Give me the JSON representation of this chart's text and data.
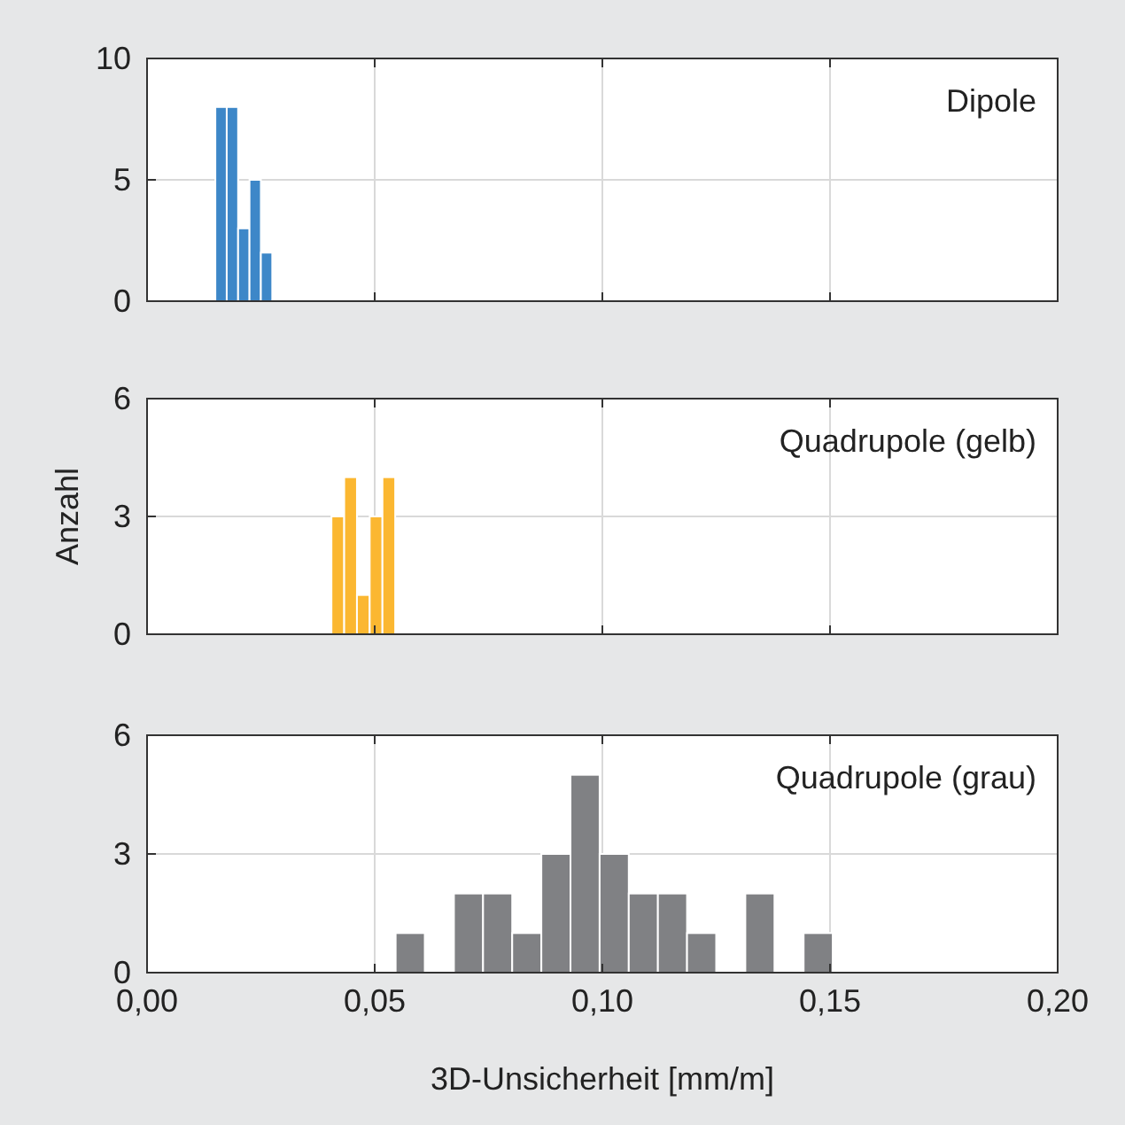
{
  "chart_data": [
    {
      "type": "histogram",
      "title": "Dipole",
      "bins": [
        0.015,
        0.0175,
        0.02,
        0.0225,
        0.025,
        0.0275
      ],
      "values": [
        8,
        8,
        3,
        5,
        2
      ],
      "color": "#3d87c8",
      "xlim": [
        0,
        0.2
      ],
      "xticks": [
        {
          "value": 0,
          "label": null
        },
        {
          "value": 0.05,
          "label": null
        },
        {
          "value": 0.1,
          "label": null
        },
        {
          "value": 0.15,
          "label": null
        },
        {
          "value": 0.2,
          "label": null
        }
      ],
      "ylim": [
        0,
        10
      ],
      "yticks": [
        0,
        5,
        10
      ],
      "grid": true,
      "tick_labels": "y"
    },
    {
      "type": "histogram",
      "title": "Quadrupole (gelb)",
      "ylabel": "Anzahl",
      "bins": [
        0.0405,
        0.0433,
        0.0461,
        0.0489,
        0.0517,
        0.0545
      ],
      "values": [
        3,
        4,
        1,
        3,
        4
      ],
      "color": "#fbb731",
      "xlim": [
        0,
        0.2
      ],
      "xticks": [
        {
          "value": 0,
          "label": null
        },
        {
          "value": 0.05,
          "label": null
        },
        {
          "value": 0.1,
          "label": null
        },
        {
          "value": 0.15,
          "label": null
        },
        {
          "value": 0.2,
          "label": null
        }
      ],
      "ylim": [
        0,
        6
      ],
      "yticks": [
        0,
        3,
        6
      ],
      "grid": true,
      "tick_labels": "y"
    },
    {
      "type": "histogram",
      "title": "Quadrupole (grau)",
      "xlabel": "3D-Unsicherheit [mm/m]",
      "bins": [
        0.0546,
        0.061,
        0.0674,
        0.0738,
        0.0802,
        0.0866,
        0.093,
        0.0994,
        0.1058,
        0.1122,
        0.1186,
        0.125,
        0.1314,
        0.1378,
        0.1442,
        0.1506
      ],
      "values": [
        1,
        0,
        2,
        2,
        1,
        3,
        5,
        3,
        2,
        2,
        1,
        0,
        2,
        0,
        1
      ],
      "color": "#808184",
      "xlim": [
        0,
        0.2
      ],
      "xticks": [
        {
          "value": 0,
          "label": "0,00"
        },
        {
          "value": 0.05,
          "label": "0,05"
        },
        {
          "value": 0.1,
          "label": "0,10"
        },
        {
          "value": 0.15,
          "label": "0,15"
        },
        {
          "value": 0.2,
          "label": "0,20"
        }
      ],
      "ylim": [
        0,
        6
      ],
      "yticks": [
        0,
        3,
        6
      ],
      "grid": true
    }
  ]
}
